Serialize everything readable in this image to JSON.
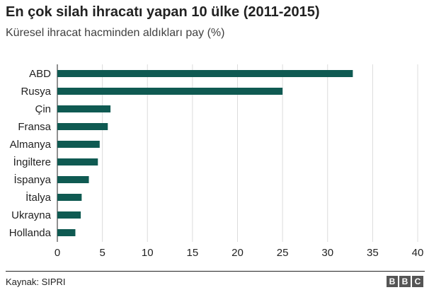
{
  "title": "En çok silah ihracatı yapan 10 ülke (2011-2015)",
  "subtitle": "Küresel ihracat hacminden aldıkları pay (%)",
  "source": "Kaynak: SIPRI",
  "logo_letters": [
    "B",
    "B",
    "C"
  ],
  "colors": {
    "bar": "#0f5a52",
    "grid": "#dcdcdc",
    "axis": "#222222",
    "text": "#222222"
  },
  "chart_data": {
    "type": "bar",
    "orientation": "horizontal",
    "categories": [
      "ABD",
      "Rusya",
      "Çin",
      "Fransa",
      "Almanya",
      "İngiltere",
      "İspanya",
      "İtalya",
      "Ukrayna",
      "Hollanda"
    ],
    "values": [
      32.8,
      25.0,
      5.9,
      5.6,
      4.7,
      4.5,
      3.5,
      2.7,
      2.6,
      2.0
    ],
    "xlim": [
      0,
      40
    ],
    "xticks": [
      0,
      5,
      10,
      15,
      20,
      25,
      30,
      35,
      40
    ],
    "grid": true
  }
}
